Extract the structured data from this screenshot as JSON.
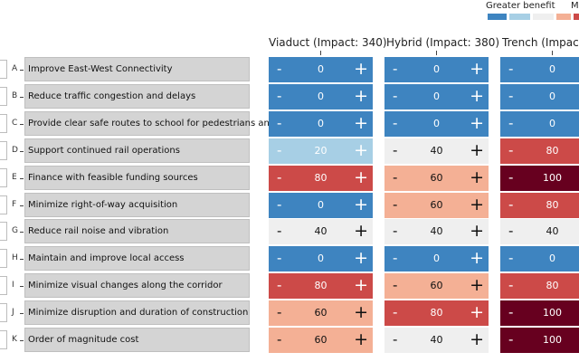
{
  "legend": {
    "left_label": "Greater benefit",
    "right_label": "M",
    "swatches": [
      "#3e84c0",
      "#a7cfe5",
      "#efefef",
      "#f4b095",
      "#cc4a48"
    ]
  },
  "columns": [
    {
      "header": "Viaduct (Impact: 340)",
      "values": [
        0,
        0,
        0,
        20,
        80,
        0,
        40,
        0,
        80,
        60,
        60
      ]
    },
    {
      "header": "Hybrid (Impact: 380)",
      "values": [
        0,
        0,
        0,
        40,
        60,
        60,
        40,
        0,
        60,
        80,
        40
      ]
    },
    {
      "header": "Trench (Impact:",
      "values": [
        0,
        0,
        0,
        80,
        100,
        80,
        40,
        0,
        80,
        100,
        100
      ]
    }
  ],
  "rows": [
    {
      "letter": "A",
      "label": "Improve East-West Connectivity"
    },
    {
      "letter": "B",
      "label": "Reduce traffic congestion and delays"
    },
    {
      "letter": "C",
      "label": "Provide clear safe routes to school for pedestrians and bikes"
    },
    {
      "letter": "D",
      "label": "Support continued rail operations"
    },
    {
      "letter": "E",
      "label": "Finance with feasible funding sources"
    },
    {
      "letter": "F",
      "label": "Minimize right-of-way acquisition"
    },
    {
      "letter": "G",
      "label": "Reduce rail noise and vibration"
    },
    {
      "letter": "H",
      "label": "Maintain and improve local access"
    },
    {
      "letter": "I",
      "label": "Minimize visual changes along the corridor"
    },
    {
      "letter": "J",
      "label": "Minimize disruption and duration of construction"
    },
    {
      "letter": "K",
      "label": "Order of magnitude cost"
    }
  ],
  "controls": {
    "minus": "-",
    "plus": "+"
  },
  "value_colors": {
    "0": {
      "bg": "#3e84c0",
      "fg": "#ffffff"
    },
    "20": {
      "bg": "#a7cfe5",
      "fg": "#ffffff"
    },
    "40": {
      "bg": "#efefef",
      "fg": "#111111"
    },
    "60": {
      "bg": "#f4b095",
      "fg": "#111111"
    },
    "80": {
      "bg": "#cc4a48",
      "fg": "#ffffff"
    },
    "100": {
      "bg": "#67001f",
      "fg": "#ffffff"
    }
  }
}
